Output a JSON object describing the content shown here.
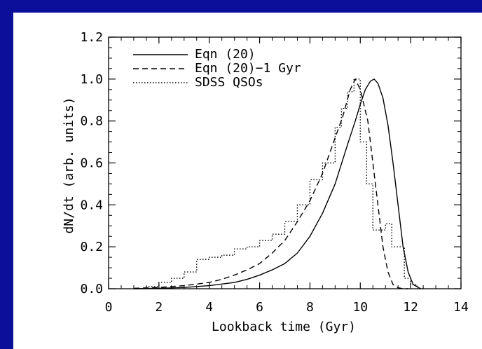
{
  "frame": {
    "accent_color": "#0b0f9a"
  },
  "chart_data": {
    "type": "line",
    "xlabel": "Lookback time (Gyr)",
    "ylabel": "dN/dt (arb. units)",
    "xlim": [
      0,
      14
    ],
    "ylim": [
      0,
      1.2
    ],
    "x_ticks": [
      0,
      2,
      4,
      6,
      8,
      10,
      12,
      14
    ],
    "y_ticks": [
      0.0,
      0.2,
      0.4,
      0.6,
      0.8,
      1.0,
      1.2
    ],
    "y_tick_labels": [
      "0.0",
      "0.2",
      "0.4",
      "0.6",
      "0.8",
      "1.0",
      "1.2"
    ],
    "x_tick_labels": [
      "0",
      "2",
      "4",
      "6",
      "8",
      "10",
      "12",
      "14"
    ],
    "grid": false,
    "legend_position": "top-left",
    "series": [
      {
        "name": "Eqn (20)",
        "style": "solid",
        "x": [
          1.0,
          2.0,
          3.0,
          4.0,
          5.0,
          5.5,
          6.0,
          6.5,
          7.0,
          7.5,
          8.0,
          8.5,
          9.0,
          9.5,
          9.8,
          10.0,
          10.2,
          10.4,
          10.55,
          10.7,
          10.9,
          11.1,
          11.3,
          11.5,
          11.7,
          11.9,
          12.1,
          12.4
        ],
        "y": [
          0.0,
          0.002,
          0.006,
          0.015,
          0.03,
          0.045,
          0.065,
          0.09,
          0.12,
          0.17,
          0.25,
          0.36,
          0.5,
          0.69,
          0.8,
          0.88,
          0.95,
          0.99,
          1.0,
          0.98,
          0.91,
          0.78,
          0.6,
          0.4,
          0.2,
          0.08,
          0.02,
          0.0
        ]
      },
      {
        "name": "Eqn (20)−1 Gyr",
        "style": "dashed",
        "x": [
          1.0,
          2.0,
          3.0,
          4.0,
          4.5,
          5.0,
          5.5,
          6.0,
          6.5,
          7.0,
          7.5,
          8.0,
          8.5,
          9.0,
          9.3,
          9.6,
          9.8,
          10.0,
          10.3,
          10.5,
          10.7,
          10.9,
          11.1,
          11.3,
          11.5,
          11.7,
          11.9
        ],
        "y": [
          0.002,
          0.006,
          0.015,
          0.03,
          0.045,
          0.065,
          0.09,
          0.12,
          0.17,
          0.23,
          0.32,
          0.42,
          0.55,
          0.72,
          0.82,
          0.95,
          1.0,
          0.95,
          0.8,
          0.6,
          0.4,
          0.2,
          0.08,
          0.02,
          0.005,
          0.0,
          0.0
        ]
      },
      {
        "name": "SDSS QSOs",
        "style": "dotted-step",
        "bin_edges": [
          1.0,
          1.5,
          2.0,
          2.5,
          3.0,
          3.5,
          4.0,
          4.5,
          5.0,
          5.5,
          6.0,
          6.5,
          7.0,
          7.5,
          8.0,
          8.5,
          9.0,
          9.25,
          9.5,
          9.75,
          10.0,
          10.25,
          10.5,
          10.75,
          11.0,
          11.25,
          11.5,
          11.75,
          12.0,
          12.25,
          12.5
        ],
        "values": [
          0.0,
          0.01,
          0.03,
          0.05,
          0.08,
          0.14,
          0.15,
          0.16,
          0.19,
          0.2,
          0.23,
          0.26,
          0.32,
          0.4,
          0.52,
          0.6,
          0.77,
          0.86,
          0.94,
          1.0,
          0.7,
          0.5,
          0.28,
          0.28,
          0.31,
          0.2,
          0.2,
          0.05,
          0.02,
          0.0
        ]
      }
    ]
  }
}
